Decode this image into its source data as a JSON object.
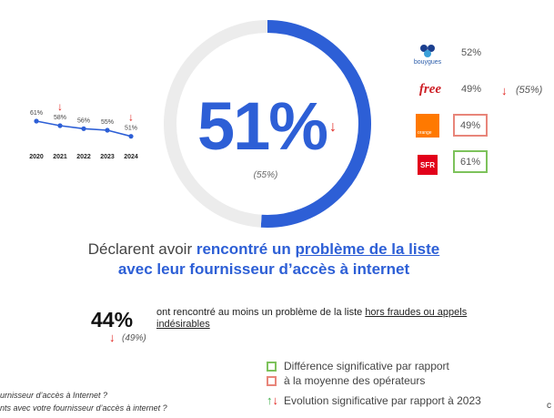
{
  "chart_data": [
    {
      "type": "line",
      "x": [
        "2020",
        "2021",
        "2022",
        "2023",
        "2024"
      ],
      "values": [
        61,
        58,
        56,
        55,
        51
      ],
      "value_labels": [
        "61%",
        "58%",
        "56%",
        "55%",
        "51%"
      ],
      "down_markers": [
        "2021",
        "2024"
      ],
      "color": "#2d5fd6"
    },
    {
      "type": "pie",
      "values": [
        51,
        49
      ],
      "center_label": "51%",
      "previous_label": "(55%)",
      "colors": [
        "#2d5fd6",
        "#ececec"
      ]
    }
  ],
  "operators": [
    {
      "name": "bouygues",
      "logo_text": "bouygues",
      "value": "52%"
    },
    {
      "name": "free",
      "logo_text": "free",
      "value": "49%",
      "previous": "(55%)"
    },
    {
      "name": "orange",
      "logo_text": "orange",
      "value": "49%"
    },
    {
      "name": "sfr",
      "logo_text": "SFR",
      "value": "61%"
    }
  ],
  "headline": {
    "part1": "Déclarent avoir ",
    "part2": "rencontré un ",
    "part3": "problème de la liste",
    "part4": " avec leur fournisseur d’accès à internet"
  },
  "secondary": {
    "value": "44%",
    "text_plain": "ont rencontré au moins un problème de la liste ",
    "text_underlined": "hors fraudes ou appels indésirables",
    "previous": "(49%)"
  },
  "legend": {
    "green": "Différence significative par rapport",
    "red": "à la moyenne des opérateurs",
    "evolution": "Evolution significative par rapport à 2023"
  },
  "footnotes": {
    "line1": "urnisseur d’accès à Internet ?",
    "line2": "nts avec votre fournisseur d’accès à internet ?"
  },
  "colors": {
    "accent": "#2d5fd6",
    "down": "#e0221c",
    "up": "#3fae49",
    "significant_green": "#7dc25b",
    "significant_red": "#e8857a"
  }
}
